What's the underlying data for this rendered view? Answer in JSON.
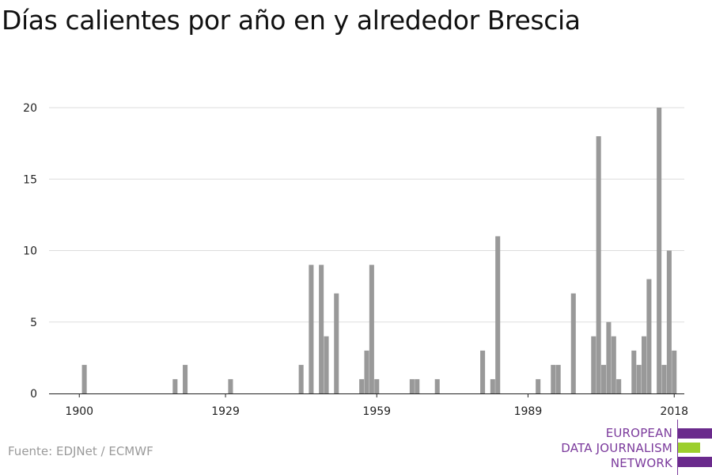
{
  "title": "Días calientes por año en y alrededor Brescia",
  "source": "Fuente: EDJNet / ECMWF",
  "logo": {
    "lines": [
      "EUROPEAN",
      "DATA JOURNALISM",
      "NETWORK"
    ],
    "text_color": "#7b3a9c",
    "bar_colors": [
      "#6a2a8c",
      "#9ccf2c",
      "#6a2a8c"
    ]
  },
  "colors": {
    "bar": "#999999",
    "grid": "#dddddd",
    "axis": "#222222"
  },
  "chart_data": {
    "type": "bar",
    "title": "Días calientes por año en y alrededor Brescia",
    "xlabel": "",
    "ylabel": "",
    "x_ticks": [
      1900,
      1929,
      1959,
      1989,
      2018
    ],
    "y_ticks": [
      0,
      5,
      10,
      15,
      20
    ],
    "xlim": [
      1894,
      2020
    ],
    "ylim": [
      0,
      20
    ],
    "grid": true,
    "data": [
      {
        "year": 1901,
        "value": 2
      },
      {
        "year": 1919,
        "value": 1
      },
      {
        "year": 1921,
        "value": 2
      },
      {
        "year": 1930,
        "value": 1
      },
      {
        "year": 1944,
        "value": 2
      },
      {
        "year": 1946,
        "value": 9
      },
      {
        "year": 1948,
        "value": 9
      },
      {
        "year": 1949,
        "value": 4
      },
      {
        "year": 1951,
        "value": 7
      },
      {
        "year": 1956,
        "value": 1
      },
      {
        "year": 1957,
        "value": 3
      },
      {
        "year": 1958,
        "value": 9
      },
      {
        "year": 1959,
        "value": 1
      },
      {
        "year": 1966,
        "value": 1
      },
      {
        "year": 1967,
        "value": 1
      },
      {
        "year": 1971,
        "value": 1
      },
      {
        "year": 1980,
        "value": 3
      },
      {
        "year": 1982,
        "value": 1
      },
      {
        "year": 1983,
        "value": 11
      },
      {
        "year": 1991,
        "value": 1
      },
      {
        "year": 1994,
        "value": 2
      },
      {
        "year": 1995,
        "value": 2
      },
      {
        "year": 1998,
        "value": 7
      },
      {
        "year": 2002,
        "value": 4
      },
      {
        "year": 2003,
        "value": 18
      },
      {
        "year": 2004,
        "value": 2
      },
      {
        "year": 2005,
        "value": 5
      },
      {
        "year": 2006,
        "value": 4
      },
      {
        "year": 2007,
        "value": 1
      },
      {
        "year": 2010,
        "value": 3
      },
      {
        "year": 2011,
        "value": 2
      },
      {
        "year": 2012,
        "value": 4
      },
      {
        "year": 2013,
        "value": 8
      },
      {
        "year": 2015,
        "value": 20
      },
      {
        "year": 2016,
        "value": 2
      },
      {
        "year": 2017,
        "value": 10
      },
      {
        "year": 2018,
        "value": 3
      }
    ]
  }
}
